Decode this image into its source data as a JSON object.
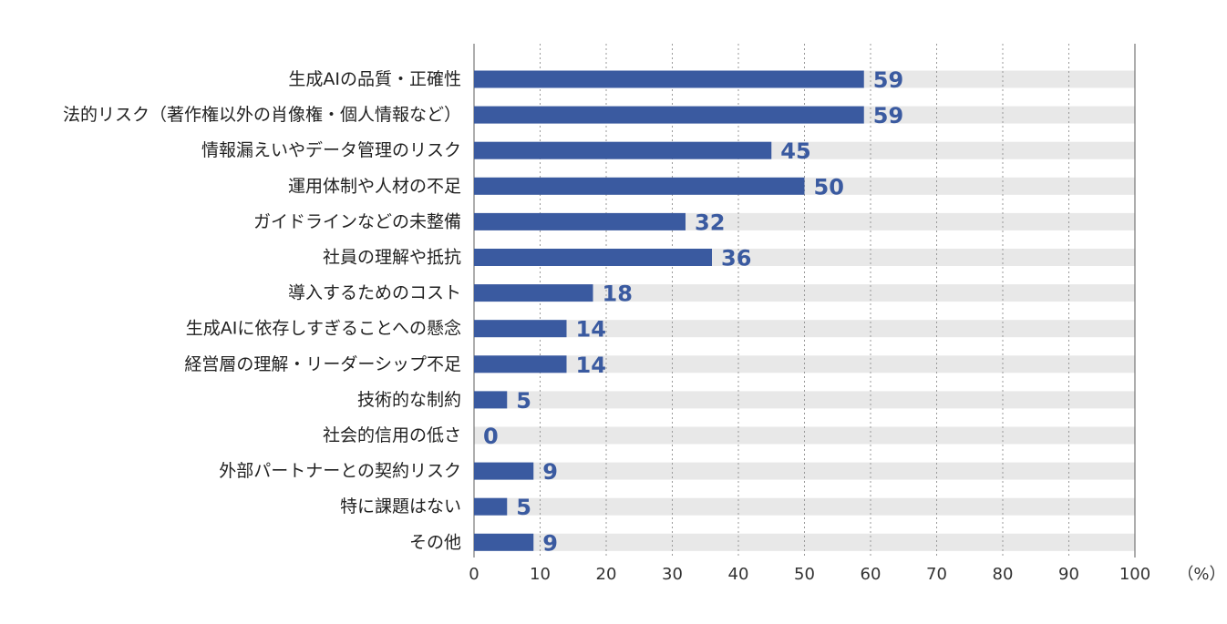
{
  "chart_data": {
    "type": "bar",
    "orientation": "horizontal",
    "categories": [
      "生成AIの品質・正確性",
      "法的リスク（著作権以外の肖像権・個人情報など）",
      "情報漏えいやデータ管理のリスク",
      "運用体制や人材の不足",
      "ガイドラインなどの未整備",
      "社員の理解や抵抗",
      "導入するためのコスト",
      "生成AIに依存しすぎることへの懸念",
      "経営層の理解・リーダーシップ不足",
      "技術的な制約",
      "社会的信用の低さ",
      "外部パートナーとの契約リスク",
      "特に課題はない",
      "その他"
    ],
    "values": [
      59,
      59,
      45,
      50,
      32,
      36,
      18,
      14,
      14,
      5,
      0,
      9,
      5,
      9
    ],
    "xlim": [
      0,
      100
    ],
    "xticks": [
      0,
      10,
      20,
      30,
      40,
      50,
      60,
      70,
      80,
      90,
      100
    ],
    "unit": "（%）",
    "grid": "vertical-dotted",
    "colors": {
      "bar": "#3a5aa0",
      "track": "#e8e8e8",
      "value_label": "#3a5aa0",
      "grid": "#999999"
    }
  }
}
